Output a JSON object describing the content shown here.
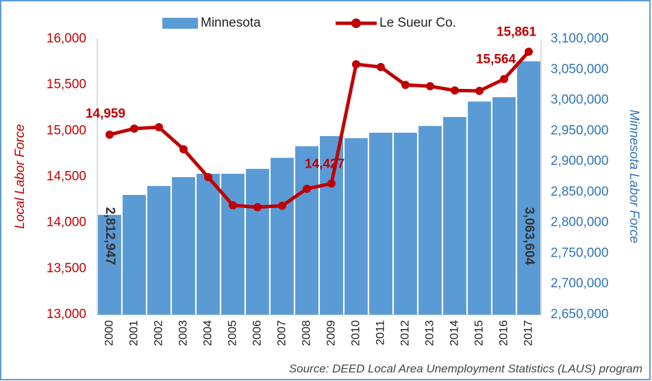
{
  "chart_data": {
    "type": "bar-line",
    "categories": [
      "2000",
      "2001",
      "2002",
      "2003",
      "2004",
      "2005",
      "2006",
      "2007",
      "2008",
      "2009",
      "2010",
      "2011",
      "2012",
      "2013",
      "2014",
      "2015",
      "2016",
      "2017"
    ],
    "series": [
      {
        "name": "Minnesota",
        "type": "bar",
        "axis": "y2",
        "color": "#5b9bd5",
        "values": [
          2812947,
          2845400,
          2860000,
          2874500,
          2880000,
          2880000,
          2888000,
          2906000,
          2925000,
          2941500,
          2938000,
          2947000,
          2947000,
          2958000,
          2972700,
          2998000,
          3005000,
          3063604
        ],
        "value_labels": [
          "2,812,947",
          null,
          null,
          null,
          null,
          null,
          null,
          null,
          null,
          null,
          null,
          null,
          null,
          null,
          null,
          null,
          null,
          "3,063,604"
        ]
      },
      {
        "name": "Le Sueur Co.",
        "type": "line",
        "axis": "y",
        "color": "#c00000",
        "values": [
          14959,
          15025,
          15040,
          14800,
          14496,
          14190,
          14170,
          14185,
          14370,
          14427,
          15725,
          15695,
          15500,
          15486,
          15440,
          15435,
          15564,
          15861
        ],
        "value_labels": [
          "14,959",
          null,
          null,
          null,
          null,
          null,
          null,
          null,
          null,
          "14,427",
          null,
          null,
          null,
          null,
          null,
          null,
          "15,564",
          "15,861"
        ]
      }
    ],
    "y_label": "Local Labor Force",
    "y2_label": "Minnesota Labor Force",
    "ylim": [
      13000,
      16000
    ],
    "yticks": [
      {
        "value": 13000,
        "label": "13,000"
      },
      {
        "value": 13500,
        "label": "13,500"
      },
      {
        "value": 14000,
        "label": "14,000"
      },
      {
        "value": 14500,
        "label": "14,500"
      },
      {
        "value": 15000,
        "label": "15,000"
      },
      {
        "value": 15500,
        "label": "15,500"
      },
      {
        "value": 16000,
        "label": "16,000"
      }
    ],
    "y2lim": [
      2650000,
      3100000
    ],
    "y2ticks": [
      {
        "value": 2650000,
        "label": "2,650,000"
      },
      {
        "value": 2700000,
        "label": "2,700,000"
      },
      {
        "value": 2750000,
        "label": "2,750,000"
      },
      {
        "value": 2800000,
        "label": "2,800,000"
      },
      {
        "value": 2850000,
        "label": "2,850,000"
      },
      {
        "value": 2900000,
        "label": "2,900,000"
      },
      {
        "value": 2950000,
        "label": "2,950,000"
      },
      {
        "value": 3000000,
        "label": "3,000,000"
      },
      {
        "value": 3050000,
        "label": "3,050,000"
      },
      {
        "value": 3100000,
        "label": "3,100,000"
      }
    ],
    "source": "Source: DEED Local Area Unemployment Statistics (LAUS) program"
  }
}
